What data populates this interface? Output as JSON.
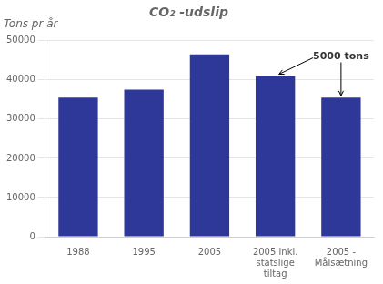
{
  "chart_data": {
    "type": "bar",
    "title": "CO₂ -udslip",
    "categories": [
      "1988",
      "1995",
      "2005",
      "2005 inkl.\nstatslige\ntiltag",
      "2005 -\nMålsætning"
    ],
    "values": [
      35500,
      37500,
      46500,
      41000,
      35500
    ],
    "color": "#2E3899",
    "ylim": [
      0,
      50000
    ],
    "yticks": [
      0,
      10000,
      20000,
      30000,
      40000,
      50000
    ],
    "grid": true,
    "annotations": [
      "Tons pr år",
      "5000 tons"
    ]
  }
}
